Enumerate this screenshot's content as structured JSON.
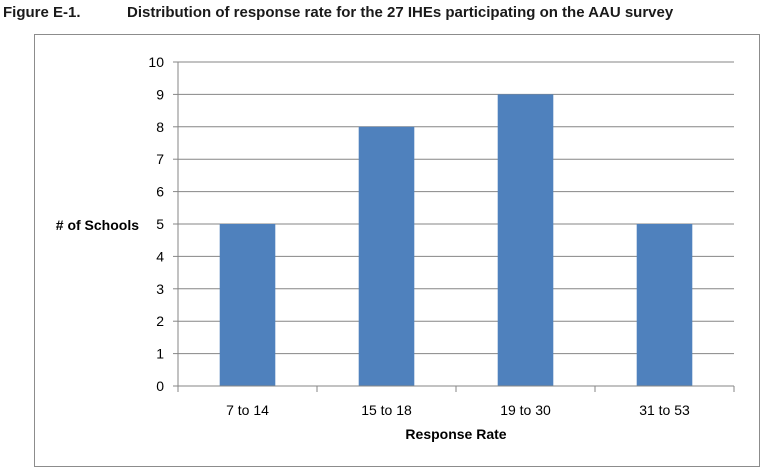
{
  "figure": {
    "label": "Figure E-1.",
    "title": "Distribution of response rate for the 27 IHEs participating on the AAU survey"
  },
  "colors": {
    "bar": "#4f81bd",
    "gridline": "#868686",
    "axis": "#868686"
  },
  "chart_data": {
    "type": "bar",
    "categories": [
      "7 to 14",
      "15 to 18",
      "19 to 30",
      "31 to 53"
    ],
    "values": [
      5,
      8,
      9,
      5
    ],
    "title": "",
    "xlabel": "Response Rate",
    "ylabel": "# of Schools",
    "ylim": [
      0,
      10
    ],
    "yticks": [
      "0",
      "1",
      "2",
      "3",
      "4",
      "5",
      "6",
      "7",
      "8",
      "9",
      "10"
    ],
    "grid": true,
    "legend": "none"
  }
}
